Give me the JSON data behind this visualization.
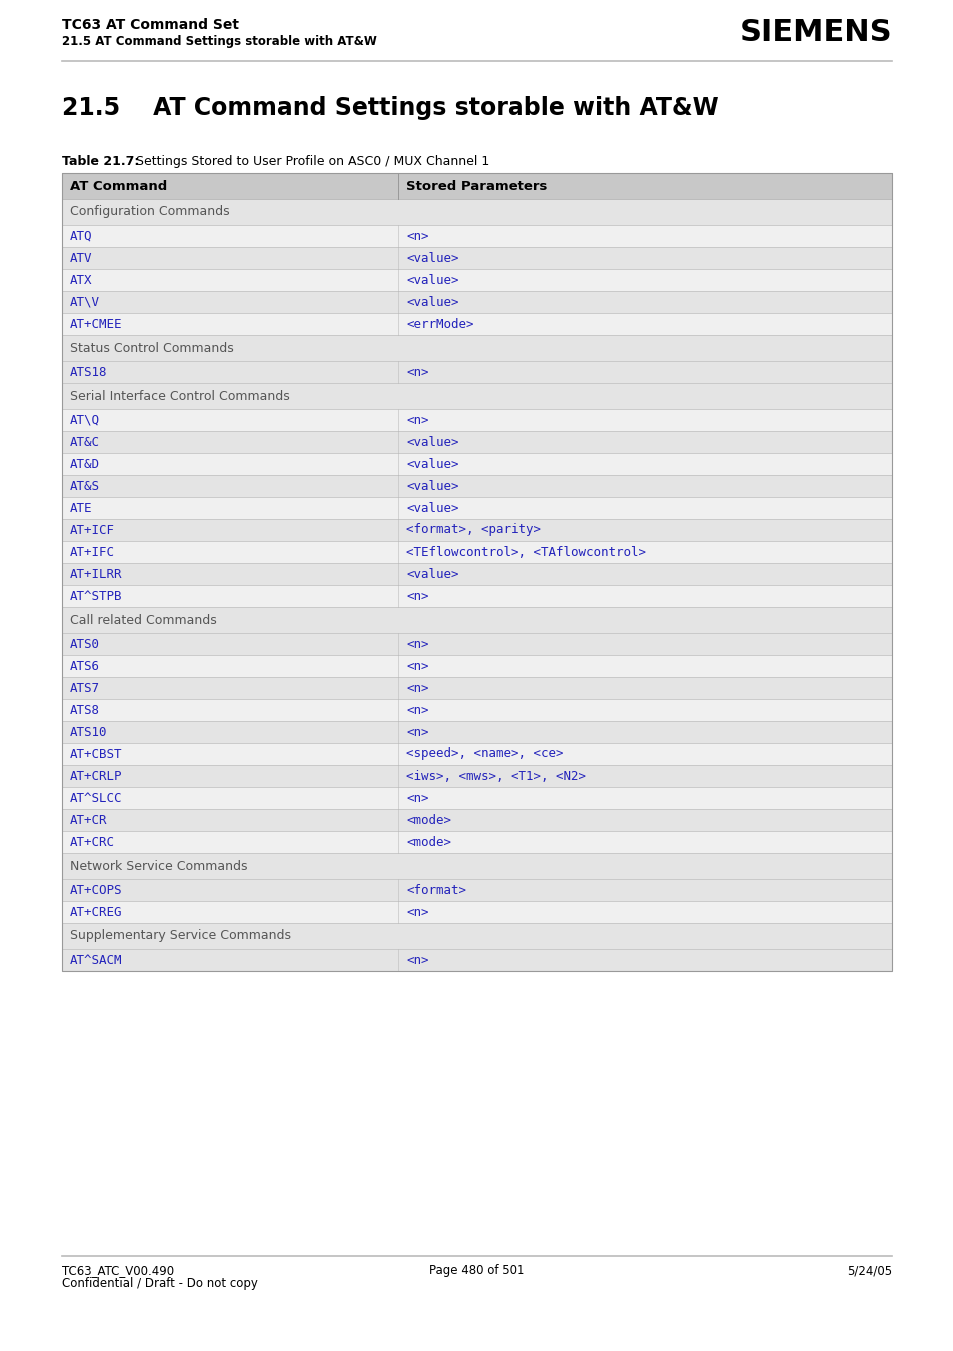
{
  "header_title": "TC63 AT Command Set",
  "header_subtitle": "21.5 AT Command Settings storable with AT&W",
  "siemens_logo": "SIEMENS",
  "section_title": "21.5    AT Command Settings storable with AT&W",
  "table_caption_bold": "Table 21.7:",
  "table_caption_normal": "   Settings Stored to User Profile on ASC0 / MUX Channel 1",
  "col1_header": "AT Command",
  "col2_header": "Stored Parameters",
  "rows": [
    {
      "type": "section",
      "col1": "Configuration Commands",
      "col2": ""
    },
    {
      "type": "data",
      "col1": "ATQ",
      "col2": "<n>"
    },
    {
      "type": "data",
      "col1": "ATV",
      "col2": "<value>"
    },
    {
      "type": "data",
      "col1": "ATX",
      "col2": "<value>"
    },
    {
      "type": "data",
      "col1": "AT\\V",
      "col2": "<value>"
    },
    {
      "type": "data",
      "col1": "AT+CMEE",
      "col2": "<errMode>"
    },
    {
      "type": "section",
      "col1": "Status Control Commands",
      "col2": ""
    },
    {
      "type": "data",
      "col1": "ATS18",
      "col2": "<n>"
    },
    {
      "type": "section",
      "col1": "Serial Interface Control Commands",
      "col2": ""
    },
    {
      "type": "data",
      "col1": "AT\\Q",
      "col2": "<n>"
    },
    {
      "type": "data",
      "col1": "AT&C",
      "col2": "<value>"
    },
    {
      "type": "data",
      "col1": "AT&D",
      "col2": "<value>"
    },
    {
      "type": "data",
      "col1": "AT&S",
      "col2": "<value>"
    },
    {
      "type": "data",
      "col1": "ATE",
      "col2": "<value>"
    },
    {
      "type": "data",
      "col1": "AT+ICF",
      "col2": "<format>, <parity>"
    },
    {
      "type": "data",
      "col1": "AT+IFC",
      "col2": "<TEflowcontrol>, <TAflowcontrol>"
    },
    {
      "type": "data",
      "col1": "AT+ILRR",
      "col2": "<value>"
    },
    {
      "type": "data",
      "col1": "AT^STPB",
      "col2": "<n>"
    },
    {
      "type": "section",
      "col1": "Call related Commands",
      "col2": ""
    },
    {
      "type": "data",
      "col1": "ATS0",
      "col2": "<n>"
    },
    {
      "type": "data",
      "col1": "ATS6",
      "col2": "<n>"
    },
    {
      "type": "data",
      "col1": "ATS7",
      "col2": "<n>"
    },
    {
      "type": "data",
      "col1": "ATS8",
      "col2": "<n>"
    },
    {
      "type": "data",
      "col1": "ATS10",
      "col2": "<n>"
    },
    {
      "type": "data",
      "col1": "AT+CBST",
      "col2": "<speed>, <name>, <ce>"
    },
    {
      "type": "data",
      "col1": "AT+CRLP",
      "col2": "<iws>, <mws>, <T1>, <N2>"
    },
    {
      "type": "data",
      "col1": "AT^SLCC",
      "col2": "<n>"
    },
    {
      "type": "data",
      "col1": "AT+CR",
      "col2": "<mode>"
    },
    {
      "type": "data",
      "col1": "AT+CRC",
      "col2": "<mode>"
    },
    {
      "type": "section",
      "col1": "Network Service Commands",
      "col2": ""
    },
    {
      "type": "data",
      "col1": "AT+COPS",
      "col2": "<format>"
    },
    {
      "type": "data",
      "col1": "AT+CREG",
      "col2": "<n>"
    },
    {
      "type": "section",
      "col1": "Supplementary Service Commands",
      "col2": ""
    },
    {
      "type": "data",
      "col1": "AT^SACM",
      "col2": "<n>"
    }
  ],
  "footer_left1": "TC63_ATC_V00.490",
  "footer_left2": "Confidential / Draft - Do not copy",
  "footer_center": "Page 480 of 501",
  "footer_right": "5/24/05",
  "blue_color": "#2222BB",
  "header_col_bg": "#C8C8C8",
  "section_bg": "#E4E4E4",
  "data_row_bg_light": "#F0F0F0",
  "data_row_bg_dark": "#E4E4E4",
  "border_color": "#BBBBBB",
  "table_outer_color": "#999999"
}
